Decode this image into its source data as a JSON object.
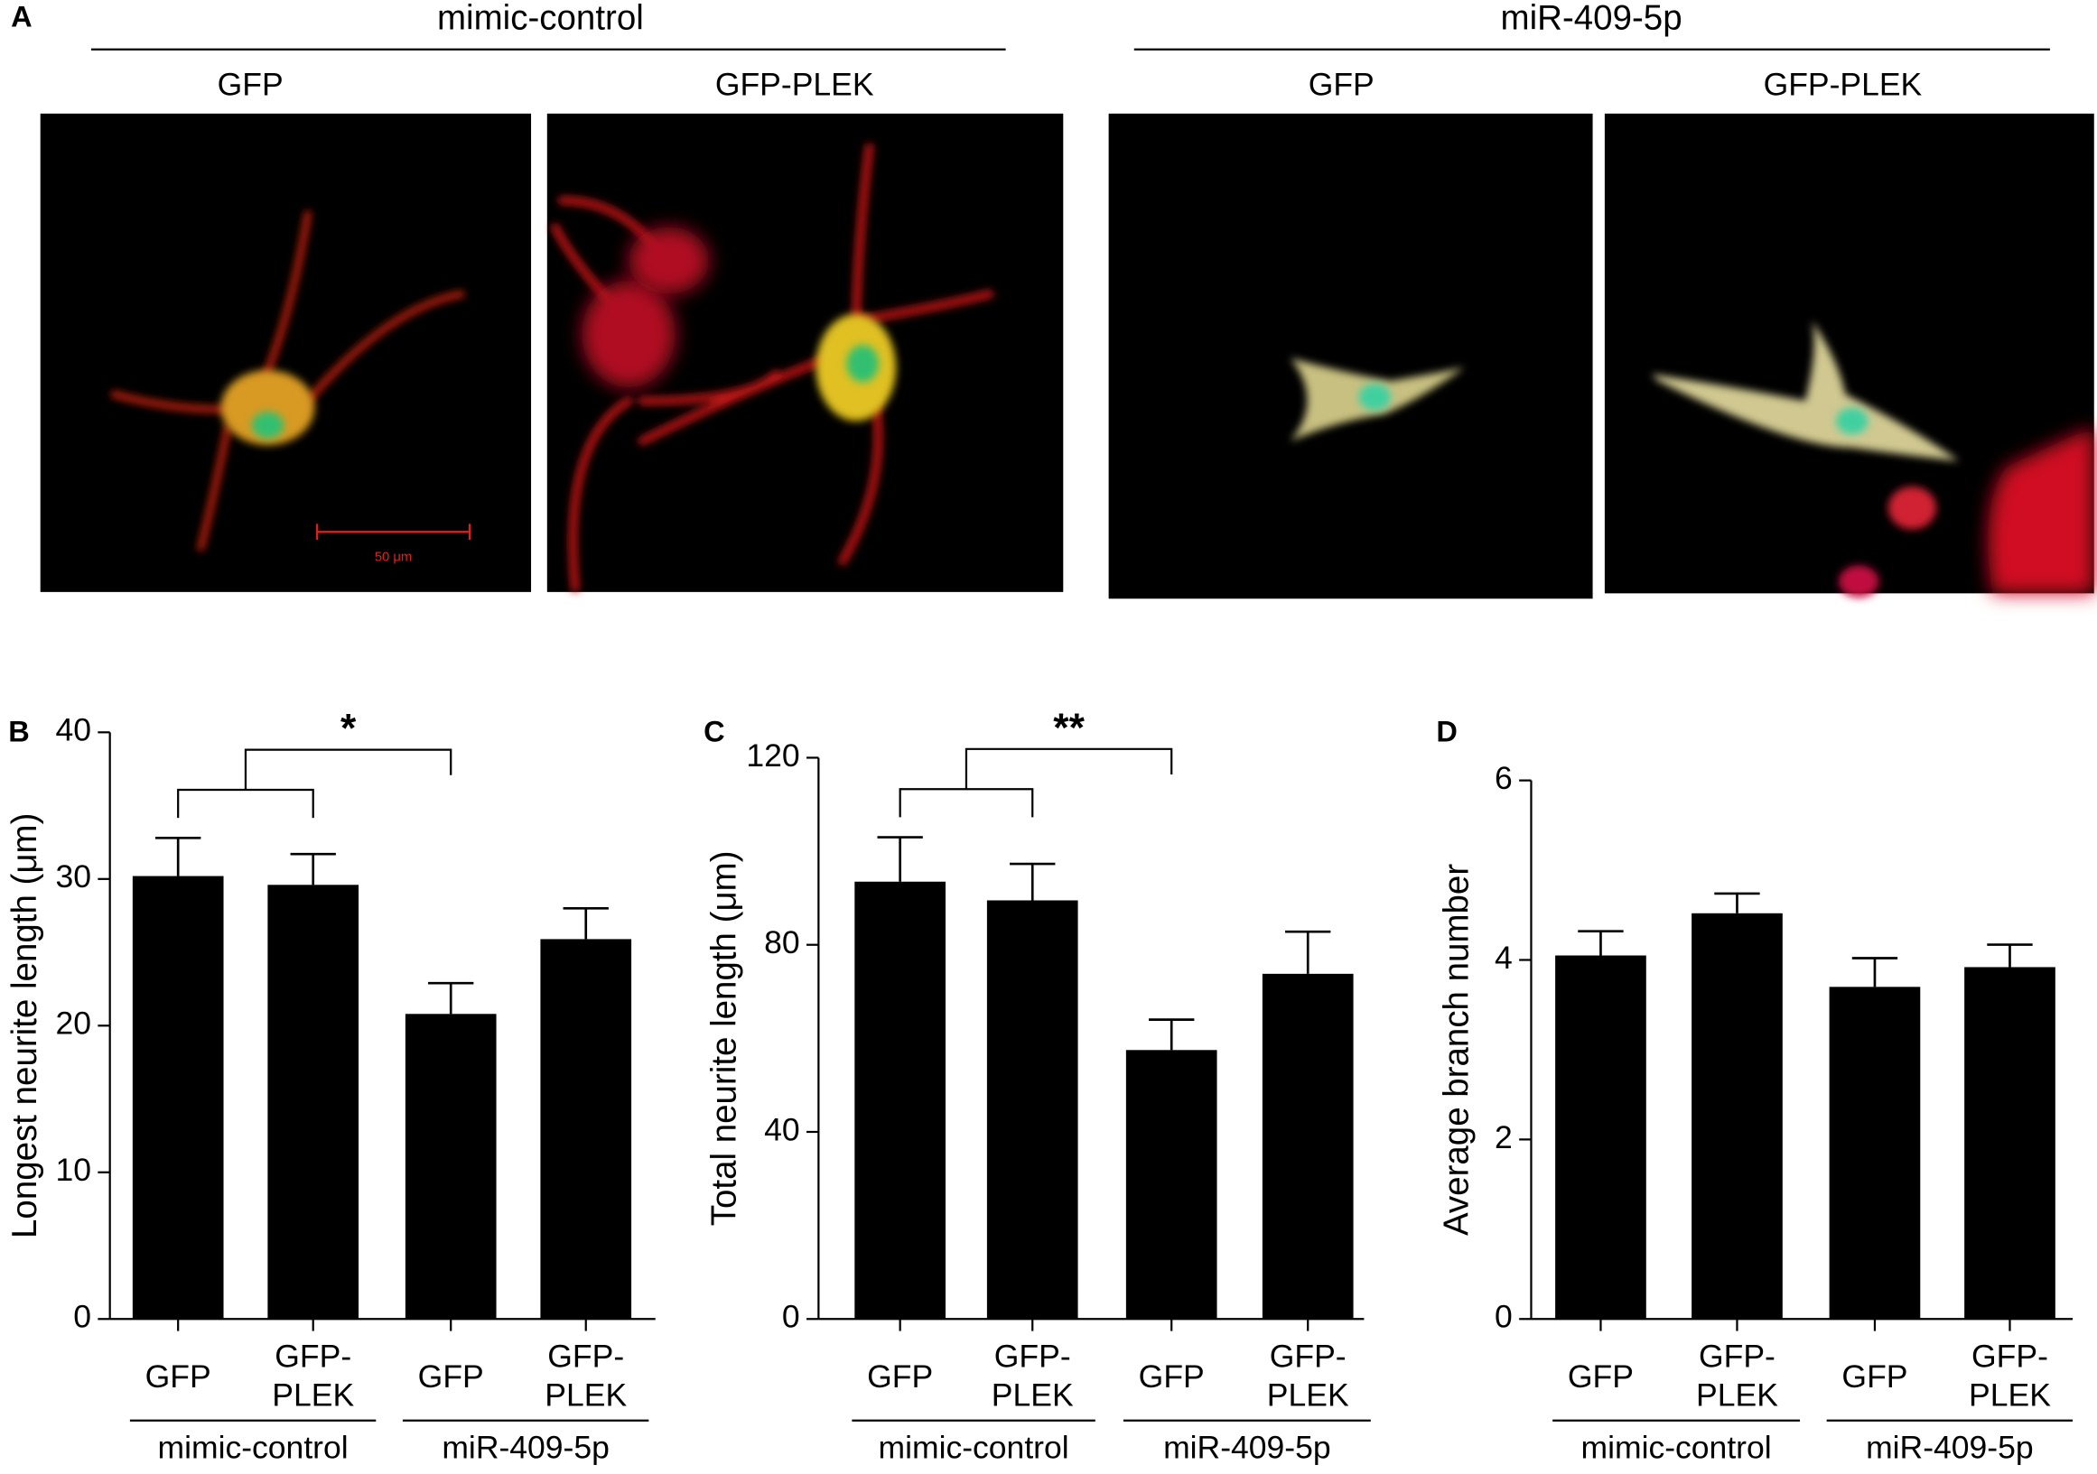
{
  "panel_a": {
    "letter": "A",
    "scale_bar": "50 μm",
    "groups": [
      {
        "name": "mimic-control",
        "images": [
          "GFP",
          "GFP-PLEK"
        ]
      },
      {
        "name": "miR-409-5p",
        "images": [
          "GFP",
          "GFP-PLEK"
        ]
      }
    ]
  },
  "chart_data": [
    {
      "type": "bar",
      "panel": "B",
      "ylabel": "Longest neurite length (μm)",
      "categories": [
        "GFP",
        "GFP-PLEK",
        "GFP",
        "GFP-PLEK"
      ],
      "groups": [
        "mimic-control",
        "miR-409-5p"
      ],
      "values": [
        30.2,
        29.6,
        20.8,
        25.9
      ],
      "errors": [
        2.6,
        2.1,
        2.1,
        2.1
      ],
      "color": "#000000",
      "ylim": [
        0,
        40
      ],
      "yticks": [
        0,
        10,
        20,
        30,
        40
      ],
      "annotation": "*"
    },
    {
      "type": "bar",
      "panel": "C",
      "ylabel": "Total neurite length (μm)",
      "categories": [
        "GFP",
        "GFP-PLEK",
        "GFP",
        "GFP-PLEK"
      ],
      "groups": [
        "mimic-control",
        "miR-409-5p"
      ],
      "values": [
        93.5,
        89.5,
        57.5,
        73.8
      ],
      "errors": [
        9.5,
        7.8,
        6.5,
        9.0
      ],
      "color": "#000000",
      "ylim": [
        0,
        120
      ],
      "yticks": [
        0,
        40,
        80,
        120
      ],
      "annotation": "**"
    },
    {
      "type": "bar",
      "panel": "D",
      "ylabel": "Average branch number",
      "categories": [
        "GFP",
        "GFP-PLEK",
        "GFP",
        "GFP-PLEK"
      ],
      "groups": [
        "mimic-control",
        "miR-409-5p"
      ],
      "values": [
        4.05,
        4.52,
        3.7,
        3.92
      ],
      "errors": [
        0.27,
        0.22,
        0.32,
        0.25
      ],
      "color": "#000000",
      "ylim": [
        0,
        6
      ],
      "yticks": [
        0,
        2,
        4,
        6
      ]
    }
  ]
}
